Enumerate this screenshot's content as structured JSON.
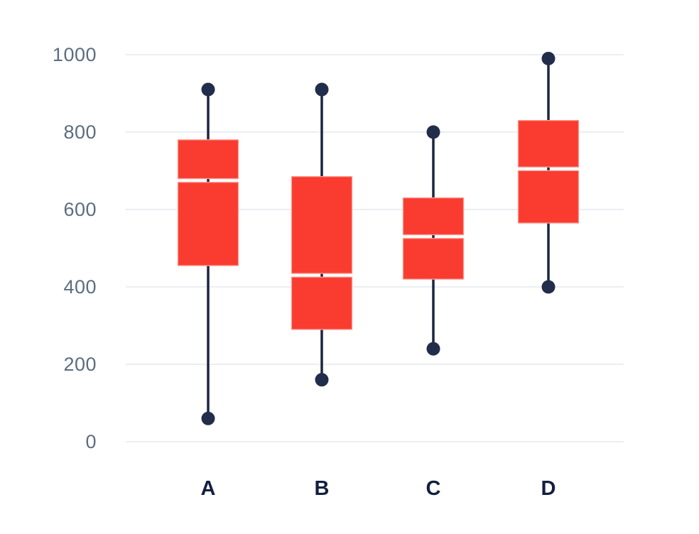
{
  "page": {
    "background": "#ffffff"
  },
  "chart_data": {
    "type": "boxplot",
    "title": "",
    "categories": [
      "A",
      "B",
      "C",
      "D"
    ],
    "ylim": [
      0,
      1000
    ],
    "yticks": [
      0,
      200,
      400,
      600,
      800,
      1000
    ],
    "grid": true,
    "legend": false,
    "boxes": [
      {
        "category": "A",
        "min": 60,
        "q1": 455,
        "median": 675,
        "q3": 780,
        "max": 910
      },
      {
        "category": "B",
        "min": 160,
        "q1": 290,
        "median": 430,
        "q3": 685,
        "max": 910
      },
      {
        "category": "C",
        "min": 240,
        "q1": 420,
        "median": 530,
        "q3": 630,
        "max": 800
      },
      {
        "category": "D",
        "min": 400,
        "q1": 565,
        "median": 705,
        "q3": 830,
        "max": 990
      }
    ],
    "colors": {
      "box_fill": "#fa3b30",
      "box_stroke": "#fc9a90",
      "median_gap": "#ffffff",
      "whisker_line": "#1b2641",
      "whisker_dot": "#222d4b",
      "gridline": "#e4e9ef",
      "y_tick_label": "#5c6d80",
      "x_category_label": "#131f3e"
    }
  }
}
